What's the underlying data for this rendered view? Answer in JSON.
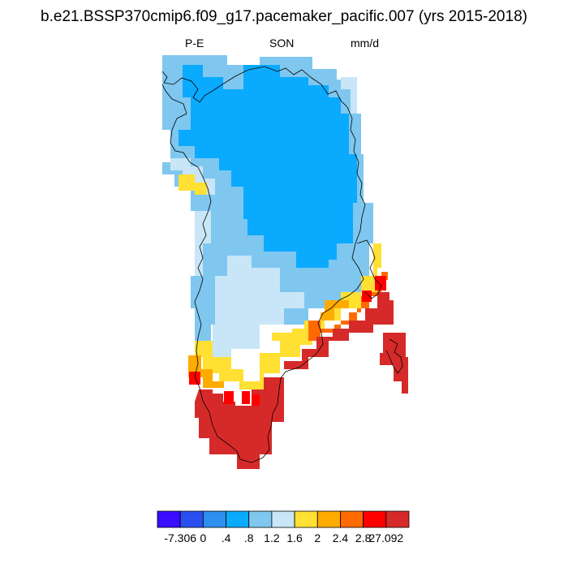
{
  "title": "b.e21.BSSP370cmip6.f09_g17.pacemaker_pacific.007 (yrs 2015-2018)",
  "subtitle_left": "P-E",
  "subtitle_center": "SON",
  "subtitle_right": "mm/d",
  "colorbar": {
    "colors": [
      "#3a0dff",
      "#2b4fee",
      "#2e8ff0",
      "#0aaaff",
      "#7fc7ef",
      "#c8e6f7",
      "#ffe033",
      "#ffab00",
      "#ff6a00",
      "#ff0000",
      "#d62a2a"
    ],
    "labels": [
      "-7.306",
      "0",
      ".4",
      ".8",
      "1.2",
      "1.6",
      "2",
      "2.4",
      "2.8",
      "27.092"
    ]
  },
  "chart_data": {
    "type": "heatmap",
    "title": "b.e21.BSSP370cmip6.f09_g17.pacemaker_pacific.007 (yrs 2015-2018)",
    "variable": "P-E",
    "season": "SON",
    "units": "mm/d",
    "range": [
      -7.306,
      27.092
    ],
    "levels": [
      0,
      0.4,
      0.8,
      1.2,
      1.6,
      2,
      2.4,
      2.8
    ]
  }
}
